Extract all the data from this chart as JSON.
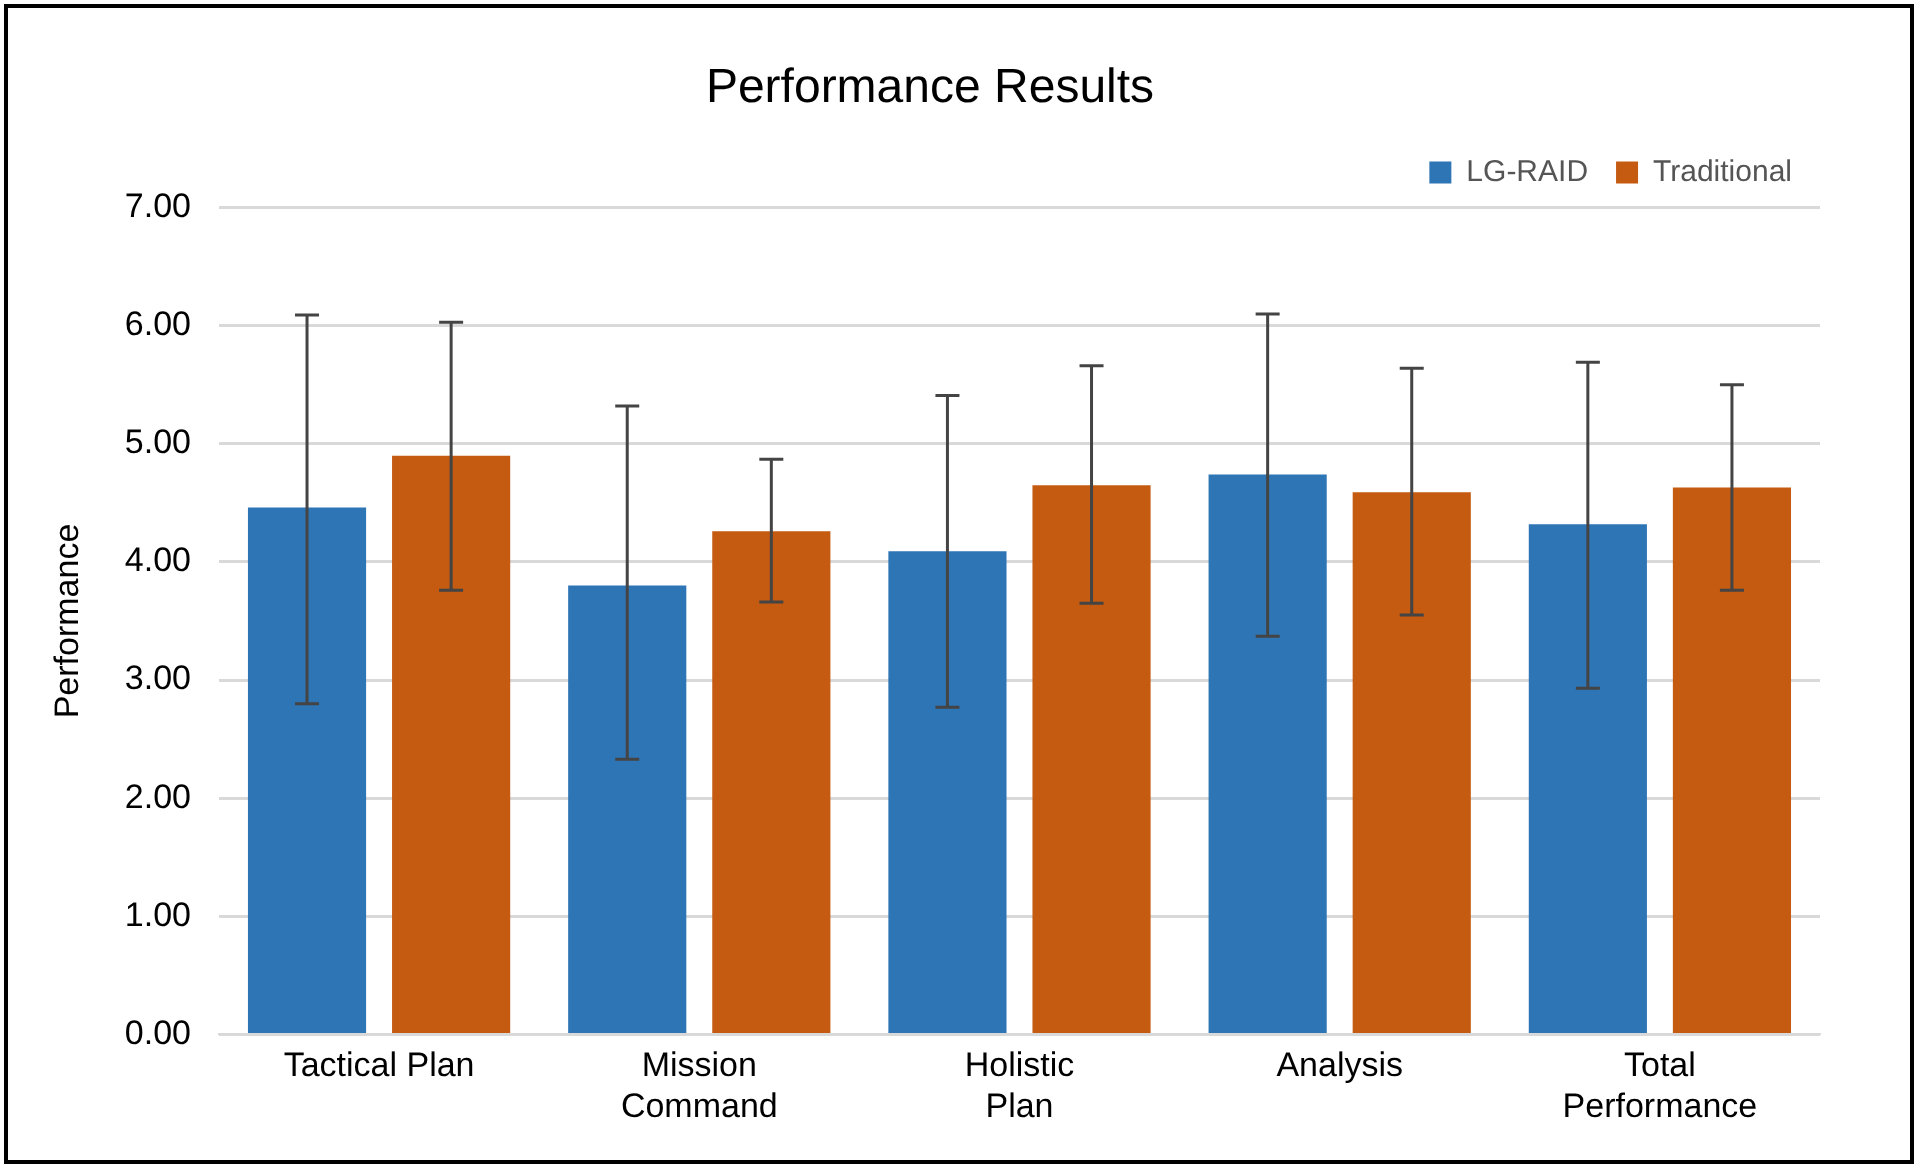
{
  "chart_data": {
    "type": "bar",
    "title": "Performance Results",
    "ylabel": "Performance",
    "categories": [
      "Tactical Plan",
      "Mission\nCommand",
      "Holistic\nPlan",
      "Analysis",
      "Total\nPerformance"
    ],
    "series": [
      {
        "name": "LG-RAID",
        "color": "#2e75b6",
        "values": [
          4.46,
          3.8,
          4.09,
          4.74,
          4.32
        ],
        "errors": [
          [
            2.8,
            6.09
          ],
          [
            2.33,
            5.32
          ],
          [
            2.77,
            5.41
          ],
          [
            3.37,
            6.1
          ],
          [
            2.93,
            5.69
          ]
        ]
      },
      {
        "name": "Traditional",
        "color": "#c55a11",
        "values": [
          4.9,
          4.26,
          4.65,
          4.59,
          4.63
        ],
        "errors": [
          [
            3.76,
            6.03
          ],
          [
            3.66,
            4.87
          ],
          [
            3.65,
            5.66
          ],
          [
            3.55,
            5.64
          ],
          [
            3.76,
            5.5
          ]
        ]
      }
    ],
    "ylim": [
      0,
      7
    ],
    "yticks": [
      {
        "value": 0,
        "label": "0.00"
      },
      {
        "value": 1,
        "label": "1.00"
      },
      {
        "value": 2,
        "label": "2.00"
      },
      {
        "value": 3,
        "label": "3.00"
      },
      {
        "value": 4,
        "label": "4.00"
      },
      {
        "value": 5,
        "label": "5.00"
      },
      {
        "value": 6,
        "label": "6.00"
      },
      {
        "value": 7,
        "label": "7.00"
      }
    ],
    "grid": "y",
    "legend": "top right"
  }
}
